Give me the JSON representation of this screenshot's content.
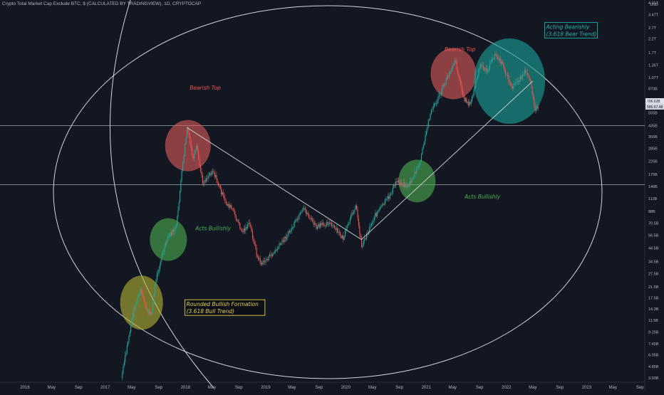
{
  "header": {
    "title": "Crypto Total Market Cap Exclude BTC, $ (CALCULATED BY TRADINGVIEW), 1D, CRYPTOCAP"
  },
  "colors": {
    "background": "#131722",
    "candle_up": "#26a69a",
    "candle_down": "#ef5350",
    "line_white": "#d1d4dc",
    "circle_red": "#e05c5c",
    "circle_green": "#4caf50",
    "circle_yellow": "#b5b536",
    "circle_teal": "#1aa39a",
    "text_red": "#ef5350",
    "text_green": "#4caf50",
    "text_yellow": "#e6d34a",
    "text_teal": "#22b5a8"
  },
  "chart_data": {
    "type": "candlestick",
    "scale": "log",
    "currency_label": "USD",
    "price_labels": [
      "4.31T",
      "3.47T",
      "2.7T",
      "2.2T",
      "1.7T",
      "1.35T",
      "1.07T",
      "870B",
      "695B",
      "555B",
      "435B",
      "355B",
      "285B",
      "225B",
      "175B",
      "140B",
      "112B",
      "88B",
      "70.5B",
      "56.5B",
      "44.5B",
      "34.5B",
      "27.5B",
      "21.5B",
      "17.5B",
      "14.3B",
      "11.5B",
      "9.25B",
      "7.45B",
      "6.05B",
      "4.85B",
      "3.93B"
    ],
    "price_values": [
      4310,
      3470,
      2700,
      2200,
      1700,
      1350,
      1070,
      870,
      695,
      555,
      435,
      355,
      285,
      225,
      175,
      140,
      112,
      88,
      70.5,
      56.5,
      44.5,
      34.5,
      27.5,
      21.5,
      17.5,
      14.3,
      11.5,
      9.25,
      7.45,
      6.05,
      4.85,
      3.93
    ],
    "last_price_labels": [
      "706.62B",
      "586.67.48"
    ],
    "x_labels": [
      "2016",
      "May",
      "Sep",
      "2017",
      "May",
      "Sep",
      "2018",
      "May",
      "Sep",
      "2019",
      "May",
      "Sep",
      "2020",
      "May",
      "Sep",
      "2021",
      "May",
      "Sep",
      "2022",
      "May",
      "Sep",
      "2023",
      "May",
      "Sep"
    ],
    "x_dates": [
      "2016-01",
      "2016-05",
      "2016-09",
      "2017-01",
      "2017-05",
      "2017-09",
      "2018-01",
      "2018-05",
      "2018-09",
      "2019-01",
      "2019-05",
      "2019-09",
      "2020-01",
      "2020-05",
      "2020-09",
      "2021-01",
      "2021-05",
      "2021-09",
      "2022-01",
      "2022-05",
      "2022-09",
      "2023-01",
      "2023-05",
      "2023-09"
    ],
    "horizontal_levels": [
      435,
      145
    ],
    "price_path": [
      [
        "2017-03-15",
        3.9
      ],
      [
        "2017-05-10",
        14
      ],
      [
        "2017-06-10",
        20
      ],
      [
        "2017-07-15",
        13
      ],
      [
        "2017-08-01",
        13.5
      ],
      [
        "2017-08-20",
        25
      ],
      [
        "2017-09-15",
        38
      ],
      [
        "2017-10-15",
        55
      ],
      [
        "2017-11-20",
        65
      ],
      [
        "2017-12-15",
        180
      ],
      [
        "2018-01-08",
        420
      ],
      [
        "2018-02-05",
        230
      ],
      [
        "2018-02-20",
        290
      ],
      [
        "2018-03-20",
        150
      ],
      [
        "2018-05-05",
        190
      ],
      [
        "2018-06-30",
        105
      ],
      [
        "2018-08-01",
        92
      ],
      [
        "2018-09-15",
        60
      ],
      [
        "2018-10-20",
        70
      ],
      [
        "2018-11-25",
        37
      ],
      [
        "2018-12-15",
        33
      ],
      [
        "2019-02-15",
        42
      ],
      [
        "2019-04-20",
        60
      ],
      [
        "2019-06-25",
        92
      ],
      [
        "2019-08-20",
        65
      ],
      [
        "2019-10-15",
        72
      ],
      [
        "2019-12-20",
        53
      ],
      [
        "2020-02-15",
        100
      ],
      [
        "2020-03-13",
        46
      ],
      [
        "2020-05-10",
        80
      ],
      [
        "2020-07-15",
        115
      ],
      [
        "2020-08-20",
        155
      ],
      [
        "2020-10-10",
        140
      ],
      [
        "2020-12-01",
        210
      ],
      [
        "2021-01-20",
        560
      ],
      [
        "2021-03-01",
        750
      ],
      [
        "2021-05-12",
        1500
      ],
      [
        "2021-06-20",
        730
      ],
      [
        "2021-07-20",
        640
      ],
      [
        "2021-09-05",
        1350
      ],
      [
        "2021-10-05",
        1200
      ],
      [
        "2021-11-09",
        1650
      ],
      [
        "2021-12-15",
        1350
      ],
      [
        "2022-01-25",
        880
      ],
      [
        "2022-03-29",
        1200
      ],
      [
        "2022-04-25",
        900
      ],
      [
        "2022-05-12",
        590
      ],
      [
        "2022-05-25",
        620
      ]
    ],
    "trend_lines": [
      {
        "from": [
          "2018-01-08",
          420
        ],
        "to": [
          "2020-03-12",
          52
        ]
      },
      {
        "from": [
          "2020-03-12",
          52
        ],
        "to": [
          "2022-05-01",
          1000
        ]
      }
    ],
    "zones": [
      {
        "color": "yellow",
        "center": [
          "2017-06-15",
          16
        ]
      },
      {
        "color": "green",
        "center": [
          "2017-10-15",
          52
        ]
      },
      {
        "color": "red",
        "center": [
          "2018-01-12",
          300
        ]
      },
      {
        "color": "green",
        "center": [
          "2020-11-20",
          155
        ]
      },
      {
        "color": "red",
        "center": [
          "2021-05-05",
          1150
        ]
      },
      {
        "color": "teal",
        "center": [
          "2022-01-15",
          1000
        ]
      }
    ],
    "annotations": [
      {
        "text": "Bearish Top",
        "color": "red",
        "at": [
          "2018-01-20",
          850
        ]
      },
      {
        "text": "Bearish Top",
        "color": "red",
        "at": [
          "2021-03-25",
          1750
        ]
      },
      {
        "text": "Acts Bullishly",
        "color": "green",
        "at": [
          "2018-02-15",
          62
        ]
      },
      {
        "text": "Acts Bullishly",
        "color": "green",
        "at": [
          "2021-06-25",
          112
        ]
      },
      {
        "text": "Rounded Bullish Formation",
        "text2": "(3.618 Bull Trend)",
        "color": "yellow",
        "boxed": true,
        "at": [
          "2018-01-05",
          15
        ]
      },
      {
        "text": "Acting Bearishly",
        "text2": "(3.618 Bear Trend)",
        "color": "teal",
        "boxed": true,
        "at": [
          "2022-07-01",
          2650
        ]
      }
    ]
  }
}
